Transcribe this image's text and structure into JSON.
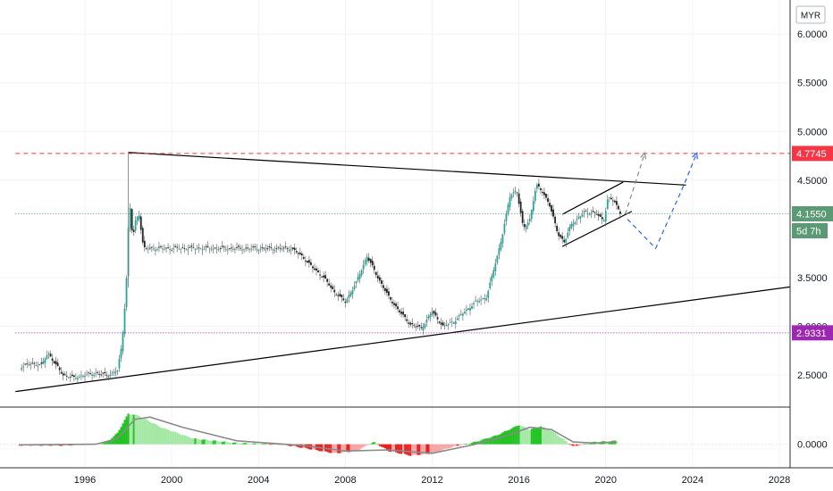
{
  "chart_data": {
    "type": "candlestick",
    "instrument_currency": "MYR",
    "x_axis": {
      "ticks": [
        "1996",
        "2000",
        "2004",
        "2008",
        "2012",
        "2016",
        "2020",
        "2024",
        "2028"
      ]
    },
    "y_axis": {
      "ticks": [
        "6.0000",
        "5.5000",
        "5.0000",
        "4.5000",
        "3.5000",
        "3.0000",
        "2.5000"
      ],
      "range": [
        2.18,
        6.35
      ]
    },
    "price_tags": [
      {
        "id": "high-level",
        "label": "4.7745",
        "value": 4.7745,
        "color": "#f23645"
      },
      {
        "id": "last-price",
        "label": "4.1550",
        "value": 4.155,
        "color": "#5b9a74"
      },
      {
        "id": "countdown",
        "label": "5d 7h",
        "value": 4.05,
        "color": "#5b9a74"
      },
      {
        "id": "low-level",
        "label": "2.9331",
        "value": 2.9331,
        "color": "#9c27b0"
      }
    ],
    "price_series": [
      [
        1993.0,
        2.58
      ],
      [
        1993.5,
        2.62
      ],
      [
        1994.0,
        2.6
      ],
      [
        1994.3,
        2.73
      ],
      [
        1994.6,
        2.62
      ],
      [
        1995.0,
        2.5
      ],
      [
        1995.5,
        2.47
      ],
      [
        1996.0,
        2.5
      ],
      [
        1996.5,
        2.52
      ],
      [
        1997.0,
        2.5
      ],
      [
        1997.3,
        2.52
      ],
      [
        1997.5,
        2.55
      ],
      [
        1997.7,
        2.8
      ],
      [
        1997.9,
        3.4
      ],
      [
        1998.05,
        4.3
      ],
      [
        1998.2,
        3.9
      ],
      [
        1998.35,
        4.1
      ],
      [
        1998.5,
        4.15
      ],
      [
        1998.7,
        3.8
      ],
      [
        1999.5,
        3.8
      ],
      [
        2001.0,
        3.8
      ],
      [
        2003.0,
        3.8
      ],
      [
        2004.5,
        3.8
      ],
      [
        2005.5,
        3.8
      ],
      [
        2006.0,
        3.72
      ],
      [
        2006.5,
        3.6
      ],
      [
        2007.0,
        3.5
      ],
      [
        2007.5,
        3.35
      ],
      [
        2008.0,
        3.25
      ],
      [
        2008.5,
        3.45
      ],
      [
        2009.0,
        3.72
      ],
      [
        2009.5,
        3.5
      ],
      [
        2010.0,
        3.3
      ],
      [
        2010.5,
        3.15
      ],
      [
        2011.0,
        3.02
      ],
      [
        2011.5,
        2.98
      ],
      [
        2012.0,
        3.15
      ],
      [
        2012.5,
        3.0
      ],
      [
        2013.0,
        3.05
      ],
      [
        2013.5,
        3.15
      ],
      [
        2014.0,
        3.25
      ],
      [
        2014.5,
        3.3
      ],
      [
        2014.8,
        3.55
      ],
      [
        2015.2,
        3.9
      ],
      [
        2015.6,
        4.35
      ],
      [
        2015.9,
        4.4
      ],
      [
        2016.2,
        4.0
      ],
      [
        2016.5,
        4.1
      ],
      [
        2016.8,
        4.45
      ],
      [
        2017.1,
        4.38
      ],
      [
        2017.4,
        4.25
      ],
      [
        2017.8,
        3.95
      ],
      [
        2018.1,
        3.86
      ],
      [
        2018.4,
        4.05
      ],
      [
        2018.7,
        4.1
      ],
      [
        2019.0,
        4.17
      ],
      [
        2019.3,
        4.17
      ],
      [
        2019.6,
        4.15
      ],
      [
        2019.9,
        4.08
      ],
      [
        2020.1,
        4.32
      ],
      [
        2020.4,
        4.28
      ],
      [
        2020.7,
        4.155
      ]
    ],
    "trendlines": [
      {
        "id": "resistance-line",
        "from": [
          1998.0,
          4.785
        ],
        "to": [
          2023.7,
          4.45
        ],
        "style": "solid",
        "color": "#000000"
      },
      {
        "id": "support-line",
        "from": [
          1992.8,
          2.33
        ],
        "to": [
          2029.0,
          3.42
        ],
        "style": "solid",
        "color": "#000000"
      },
      {
        "id": "channel-upper",
        "from": [
          2018.0,
          4.15
        ],
        "to": [
          2020.8,
          4.48
        ],
        "style": "solid",
        "color": "#000000"
      },
      {
        "id": "channel-lower",
        "from": [
          2018.0,
          3.82
        ],
        "to": [
          2021.2,
          4.18
        ],
        "style": "solid",
        "color": "#000000"
      },
      {
        "id": "high-level-line",
        "from": [
          1992.8,
          4.7745
        ],
        "to": [
          2029.0,
          4.7745
        ],
        "style": "dashed",
        "color": "#f23645"
      },
      {
        "id": "low-level-line",
        "from": [
          1992.8,
          2.9331
        ],
        "to": [
          2029.0,
          2.9331
        ],
        "style": "dotted",
        "color": "#9c27b0"
      },
      {
        "id": "last-price-line",
        "from": [
          1992.8,
          4.155
        ],
        "to": [
          2029.0,
          4.155
        ],
        "style": "dotted",
        "color": "#5b9a74"
      }
    ],
    "projections": [
      {
        "id": "projection-bullish",
        "points": [
          [
            2020.9,
            4.15
          ],
          [
            2021.8,
            4.78
          ]
        ],
        "color": "#8a8a8a"
      },
      {
        "id": "projection-bearish",
        "points": [
          [
            2021.0,
            4.1
          ],
          [
            2022.3,
            3.8
          ],
          [
            2023.6,
            4.45
          ],
          [
            2024.2,
            4.78
          ]
        ],
        "color": "#2962ff"
      }
    ],
    "oscillator": {
      "y_axis": {
        "ticks": [
          "0.0000"
        ],
        "range": [
          -0.2,
          0.32
        ]
      },
      "histogram": [
        [
          1993.0,
          -0.01
        ],
        [
          1995.0,
          -0.012
        ],
        [
          1996.5,
          0.003
        ],
        [
          1997.0,
          0.015
        ],
        [
          1997.5,
          0.1
        ],
        [
          1998.0,
          0.27
        ],
        [
          1998.5,
          0.25
        ],
        [
          1999.5,
          0.15
        ],
        [
          2001.0,
          0.05
        ],
        [
          2003.0,
          0.01
        ],
        [
          2005.0,
          0.0
        ],
        [
          2006.0,
          -0.03
        ],
        [
          2007.5,
          -0.08
        ],
        [
          2008.5,
          -0.06
        ],
        [
          2009.3,
          0.02
        ],
        [
          2010.0,
          -0.06
        ],
        [
          2011.0,
          -0.1
        ],
        [
          2012.0,
          -0.08
        ],
        [
          2013.0,
          -0.02
        ],
        [
          2014.0,
          0.02
        ],
        [
          2015.0,
          0.08
        ],
        [
          2016.0,
          0.17
        ],
        [
          2016.5,
          0.13
        ],
        [
          2017.0,
          0.16
        ],
        [
          2017.5,
          0.12
        ],
        [
          2018.0,
          0.05
        ],
        [
          2018.5,
          -0.02
        ],
        [
          2019.5,
          0.02
        ],
        [
          2020.5,
          0.03
        ]
      ],
      "signal": [
        [
          1993.0,
          -0.005
        ],
        [
          1996.5,
          0.0
        ],
        [
          1997.5,
          0.05
        ],
        [
          1998.3,
          0.22
        ],
        [
          1999.0,
          0.24
        ],
        [
          2000.5,
          0.15
        ],
        [
          2003.0,
          0.03
        ],
        [
          2006.0,
          -0.01
        ],
        [
          2008.0,
          -0.06
        ],
        [
          2010.0,
          -0.05
        ],
        [
          2012.0,
          -0.08
        ],
        [
          2014.0,
          0.0
        ],
        [
          2015.5,
          0.08
        ],
        [
          2016.5,
          0.15
        ],
        [
          2017.5,
          0.13
        ],
        [
          2018.5,
          0.02
        ],
        [
          2019.5,
          0.01
        ],
        [
          2020.5,
          0.02
        ]
      ]
    }
  }
}
